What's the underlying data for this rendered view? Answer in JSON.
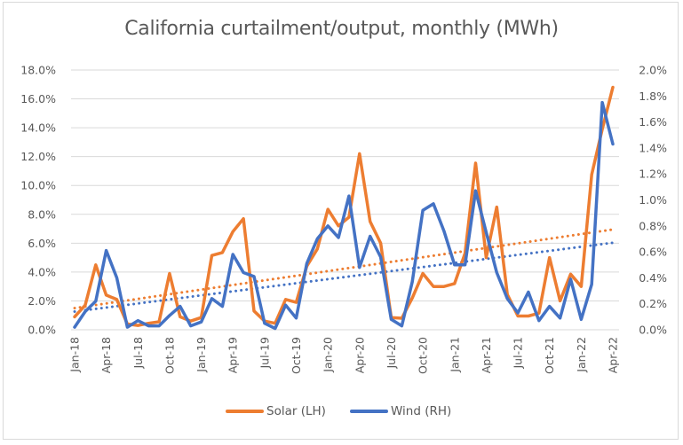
{
  "chart_data": {
    "type": "line",
    "title": "California curtailment/output, monthly (MWh)",
    "xlabel": "",
    "ylabel_left": "",
    "ylabel_right": "",
    "x": [
      "Jan-18",
      "Feb-18",
      "Mar-18",
      "Apr-18",
      "May-18",
      "Jun-18",
      "Jul-18",
      "Aug-18",
      "Sep-18",
      "Oct-18",
      "Nov-18",
      "Dec-18",
      "Jan-19",
      "Feb-19",
      "Mar-19",
      "Apr-19",
      "May-19",
      "Jun-19",
      "Jul-19",
      "Aug-19",
      "Sep-19",
      "Oct-19",
      "Nov-19",
      "Dec-19",
      "Jan-20",
      "Feb-20",
      "Mar-20",
      "Apr-20",
      "May-20",
      "Jun-20",
      "Jul-20",
      "Aug-20",
      "Sep-20",
      "Oct-20",
      "Nov-20",
      "Dec-20",
      "Jan-21",
      "Feb-21",
      "Mar-21",
      "Apr-21",
      "May-21",
      "Jun-21",
      "Jul-21",
      "Aug-21",
      "Sep-21",
      "Oct-21",
      "Nov-21",
      "Dec-21",
      "Jan-22",
      "Feb-22",
      "Mar-22",
      "Apr-22"
    ],
    "x_tick_labels": [
      "Jan-18",
      "Apr-18",
      "Jul-18",
      "Oct-18",
      "Jan-19",
      "Apr-19",
      "Jul-19",
      "Oct-19",
      "Jan-20",
      "Apr-20",
      "Jul-20",
      "Oct-20",
      "Jan-21",
      "Apr-21",
      "Jul-21",
      "Oct-21",
      "Jan-22",
      "Apr-22"
    ],
    "y_left": {
      "ylim": [
        0,
        18
      ],
      "ticks": [
        "0.0%",
        "2.0%",
        "4.0%",
        "6.0%",
        "8.0%",
        "10.0%",
        "12.0%",
        "14.0%",
        "16.0%",
        "18.0%"
      ],
      "tick_values": [
        0,
        2,
        4,
        6,
        8,
        10,
        12,
        14,
        16,
        18
      ]
    },
    "y_right": {
      "ylim": [
        0,
        2
      ],
      "ticks": [
        "0.0%",
        "0.2%",
        "0.4%",
        "0.6%",
        "0.8%",
        "1.0%",
        "1.2%",
        "1.4%",
        "1.6%",
        "1.8%",
        "2.0%"
      ],
      "tick_values": [
        0,
        0.2,
        0.4,
        0.6,
        0.8,
        1.0,
        1.2,
        1.4,
        1.6,
        1.8,
        2.0
      ]
    },
    "grid": true,
    "legend_position": "bottom",
    "series": [
      {
        "name": "Solar (LH)",
        "axis": "left",
        "unit": "%",
        "color": "#ED7D31",
        "values": [
          0.9,
          1.7,
          4.5,
          2.4,
          2.1,
          0.4,
          0.3,
          0.45,
          0.55,
          3.9,
          0.9,
          0.6,
          0.85,
          5.15,
          5.35,
          6.8,
          7.7,
          1.3,
          0.6,
          0.45,
          2.1,
          1.9,
          4.4,
          5.6,
          8.35,
          7.2,
          7.8,
          12.2,
          7.5,
          6.0,
          0.85,
          0.8,
          2.2,
          3.9,
          3.0,
          3.0,
          3.2,
          5.3,
          11.55,
          5.0,
          8.5,
          2.45,
          0.95,
          0.95,
          1.15,
          5.0,
          2.0,
          3.85,
          3.0,
          10.75,
          13.9,
          16.8
        ]
      },
      {
        "name": "Wind (RH)",
        "axis": "right",
        "unit": "%",
        "color": "#4472C4",
        "values": [
          0.02,
          0.14,
          0.22,
          0.61,
          0.4,
          0.02,
          0.07,
          0.03,
          0.03,
          0.11,
          0.18,
          0.03,
          0.06,
          0.24,
          0.18,
          0.58,
          0.44,
          0.41,
          0.05,
          0.01,
          0.19,
          0.09,
          0.51,
          0.7,
          0.8,
          0.71,
          1.03,
          0.48,
          0.72,
          0.56,
          0.08,
          0.03,
          0.37,
          0.92,
          0.97,
          0.76,
          0.5,
          0.5,
          1.07,
          0.75,
          0.44,
          0.24,
          0.13,
          0.29,
          0.07,
          0.18,
          0.09,
          0.39,
          0.08,
          0.35,
          1.75,
          1.43
        ]
      }
    ],
    "trendlines": [
      {
        "name": "Solar linear trend",
        "axis": "left",
        "style": "dotted",
        "color": "#ED7D31",
        "start": 1.5,
        "end": 6.95
      },
      {
        "name": "Wind linear trend",
        "axis": "right",
        "style": "dotted",
        "color": "#4472C4",
        "start": 0.14,
        "end": 0.67
      }
    ]
  },
  "legend": {
    "items": [
      {
        "label": "Solar (LH)",
        "color": "#ED7D31"
      },
      {
        "label": "Wind (RH)",
        "color": "#4472C4"
      }
    ]
  }
}
